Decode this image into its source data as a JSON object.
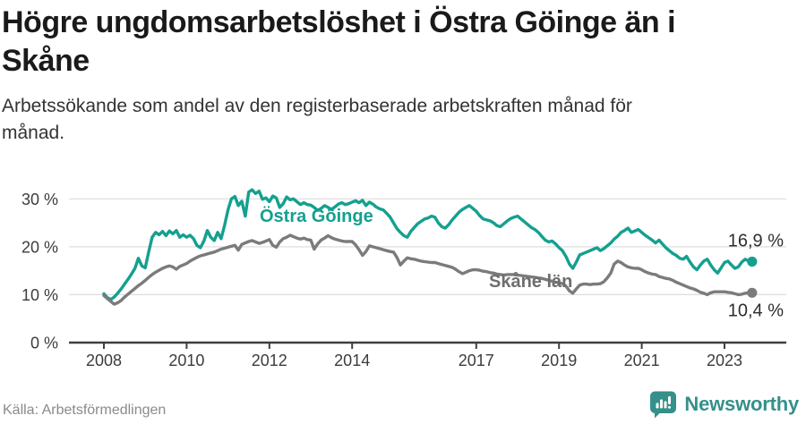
{
  "header": {
    "title_lines": [
      "Högre ungdomsarbetslöshet i Östra Göinge än i",
      "Skåne"
    ],
    "subtitle_lines": [
      "Arbetssökande som andel av den registerbaserade arbetskraften månad för",
      "månad."
    ]
  },
  "footer": {
    "source": "Källa: Arbetsförmedlingen",
    "brand": "Newsworthy"
  },
  "style": {
    "accent_teal": "#14a090",
    "line_gray": "#7b7b7b",
    "grid_color": "#dddddd",
    "axis_color": "#3f3f3f",
    "tick_label_color": "#3c3c3c",
    "end_label_color": "#2e2e2e",
    "logo_teal": "#35908a"
  },
  "chart_data": {
    "type": "line",
    "title": "Högre ungdomsarbetslöshet i Östra Göinge än i Skåne",
    "subtitle": "Arbetssökande som andel av den registerbaserade arbetskraften månad för månad.",
    "legend_position": "inline-labels",
    "grid": true,
    "x_axis": {
      "start_year": 2008,
      "interval": "monthly",
      "ticks": [
        {
          "label": "2008",
          "year": 2008
        },
        {
          "label": "2010",
          "year": 2010
        },
        {
          "label": "2012",
          "year": 2012
        },
        {
          "label": "2014",
          "year": 2014
        },
        {
          "label": "2017",
          "year": 2017
        },
        {
          "label": "2019",
          "year": 2019
        },
        {
          "label": "2021",
          "year": 2021
        },
        {
          "label": "2023",
          "year": 2023
        }
      ]
    },
    "y_axis": {
      "unit": "%",
      "ylim": [
        0,
        33
      ],
      "ticks": [
        {
          "label": "0 %",
          "value": 0
        },
        {
          "label": "10 %",
          "value": 10
        },
        {
          "label": "20 %",
          "value": 20
        },
        {
          "label": "30 %",
          "value": 30
        }
      ]
    },
    "series": [
      {
        "name": "Östra Göinge",
        "color": "#14a090",
        "label_color": "#14a090",
        "end_label": "16,9 %",
        "end_value": 16.9,
        "values": [
          10.2,
          9.4,
          9.0,
          9.5,
          10.3,
          11.2,
          12.2,
          13.2,
          14.3,
          15.5,
          17.6,
          16.0,
          15.6,
          18.9,
          22.0,
          23.0,
          22.5,
          23.2,
          22.3,
          23.3,
          22.7,
          23.4,
          22.0,
          22.5,
          22.0,
          22.4,
          21.7,
          20.3,
          19.8,
          21.2,
          23.4,
          22.0,
          21.3,
          23.0,
          21.7,
          24.5,
          27.7,
          30.0,
          30.5,
          28.6,
          29.5,
          26.4,
          31.4,
          31.9,
          31.1,
          31.6,
          29.9,
          30.2,
          29.4,
          30.6,
          30.2,
          28.2,
          29.0,
          30.4,
          29.8,
          30.0,
          29.4,
          28.8,
          29.2,
          28.8,
          28.7,
          28.2,
          27.6,
          28.0,
          28.6,
          28.2,
          27.8,
          28.3,
          28.9,
          29.2,
          28.8,
          29.0,
          29.3,
          29.6,
          29.2,
          29.7,
          28.6,
          29.3,
          28.9,
          28.3,
          27.9,
          27.7,
          27.0,
          26.2,
          25.0,
          23.8,
          23.0,
          22.3,
          22.0,
          23.2,
          24.0,
          24.8,
          25.3,
          25.8,
          26.0,
          26.4,
          26.2,
          25.0,
          24.2,
          23.9,
          24.6,
          25.6,
          26.4,
          27.2,
          27.8,
          28.2,
          28.6,
          28.0,
          27.4,
          26.5,
          25.8,
          25.6,
          25.4,
          25.0,
          24.4,
          24.2,
          24.8,
          25.4,
          25.9,
          26.2,
          26.4,
          25.8,
          25.2,
          24.6,
          24.0,
          23.6,
          23.0,
          22.2,
          21.4,
          21.0,
          21.2,
          20.6,
          19.8,
          19.2,
          18.0,
          16.4,
          15.5,
          16.8,
          18.3,
          18.6,
          18.9,
          19.2,
          19.5,
          19.8,
          19.2,
          19.6,
          20.2,
          20.8,
          21.6,
          22.2,
          23.0,
          23.4,
          23.9,
          23.0,
          23.3,
          23.6,
          23.0,
          22.4,
          21.9,
          21.4,
          20.8,
          21.4,
          20.6,
          19.8,
          19.2,
          18.6,
          18.2,
          17.6,
          17.4,
          18.0,
          16.8,
          15.8,
          15.2,
          16.2,
          17.0,
          17.4,
          16.2,
          15.2,
          14.5,
          15.6,
          16.7,
          17.0,
          16.2,
          15.5,
          15.8,
          16.8,
          17.4,
          17.0,
          16.9
        ]
      },
      {
        "name": "Skåne län",
        "color": "#7b7b7b",
        "label_color": "#6e6e6e",
        "end_label": "10,4 %",
        "end_value": 10.4,
        "values": [
          9.8,
          9.2,
          8.6,
          8.0,
          8.3,
          8.8,
          9.5,
          10.1,
          10.7,
          11.3,
          11.9,
          12.4,
          13.0,
          13.6,
          14.2,
          14.7,
          15.1,
          15.5,
          15.8,
          16.0,
          15.8,
          15.3,
          15.9,
          16.2,
          16.5,
          17.0,
          17.4,
          17.8,
          18.1,
          18.3,
          18.5,
          18.7,
          18.9,
          19.2,
          19.5,
          19.7,
          19.9,
          20.1,
          20.3,
          19.3,
          20.5,
          20.8,
          21.1,
          21.3,
          21.0,
          20.7,
          20.9,
          21.2,
          21.5,
          20.3,
          19.9,
          21.0,
          21.7,
          22.0,
          22.4,
          22.1,
          21.8,
          21.6,
          21.8,
          21.5,
          21.4,
          19.5,
          20.6,
          21.4,
          21.8,
          22.3,
          21.9,
          21.6,
          21.4,
          21.2,
          21.1,
          21.1,
          21.1,
          20.4,
          19.4,
          18.2,
          19.0,
          20.2,
          20.0,
          19.8,
          19.6,
          19.4,
          19.2,
          19.0,
          18.9,
          17.8,
          16.2,
          17.0,
          17.7,
          17.5,
          17.4,
          17.2,
          17.0,
          16.9,
          16.8,
          16.7,
          16.7,
          16.5,
          16.3,
          16.1,
          15.9,
          15.7,
          15.3,
          14.8,
          14.4,
          14.7,
          15.0,
          15.2,
          15.2,
          15.1,
          14.9,
          14.8,
          14.6,
          14.5,
          14.3,
          14.2,
          14.1,
          14.2,
          14.2,
          14.2,
          14.1,
          14.0,
          13.9,
          13.8,
          13.7,
          13.6,
          13.5,
          13.4,
          13.2,
          13.0,
          12.8,
          12.6,
          12.5,
          12.3,
          11.8,
          10.8,
          10.3,
          11.2,
          12.0,
          12.2,
          12.2,
          12.1,
          12.2,
          12.2,
          12.3,
          12.7,
          13.5,
          14.5,
          16.4,
          17.0,
          16.7,
          16.2,
          15.8,
          15.6,
          15.5,
          15.5,
          15.2,
          14.8,
          14.5,
          14.3,
          14.2,
          13.8,
          13.6,
          13.4,
          13.3,
          13.0,
          12.6,
          12.3,
          12.0,
          11.7,
          11.4,
          11.2,
          10.9,
          10.5,
          10.3,
          10.0,
          10.4,
          10.6,
          10.6,
          10.6,
          10.6,
          10.5,
          10.4,
          10.2,
          10.0,
          10.1,
          10.3,
          10.4,
          10.4
        ]
      }
    ]
  }
}
